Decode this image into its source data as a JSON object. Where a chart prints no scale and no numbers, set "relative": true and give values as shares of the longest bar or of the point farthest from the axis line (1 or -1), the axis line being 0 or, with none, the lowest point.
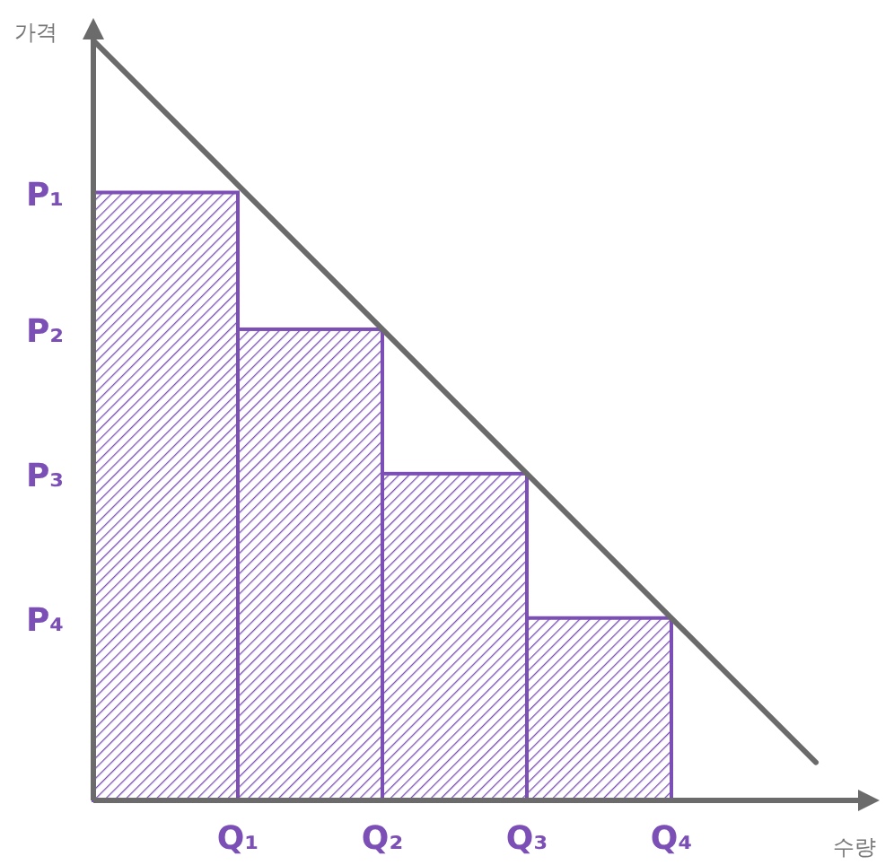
{
  "chart_data": {
    "type": "bar",
    "relative": true,
    "xlabel": "수량",
    "ylabel": "가격",
    "categories": [
      null,
      "Q₁",
      "Q₂",
      "Q₃",
      "Q₄",
      null
    ],
    "annotations": [
      "P₁",
      "P₂",
      "P₃",
      "P₄"
    ],
    "series": [
      {
        "color": "#7b4fb5",
        "values": [
          null,
          0.8,
          0.62,
          0.43,
          0.24,
          null
        ]
      },
      {
        "type": "line",
        "color": "#6b6b6b",
        "values": [
          1,
          0.81,
          0.62,
          0.43,
          0.24,
          0.05
        ]
      }
    ]
  }
}
